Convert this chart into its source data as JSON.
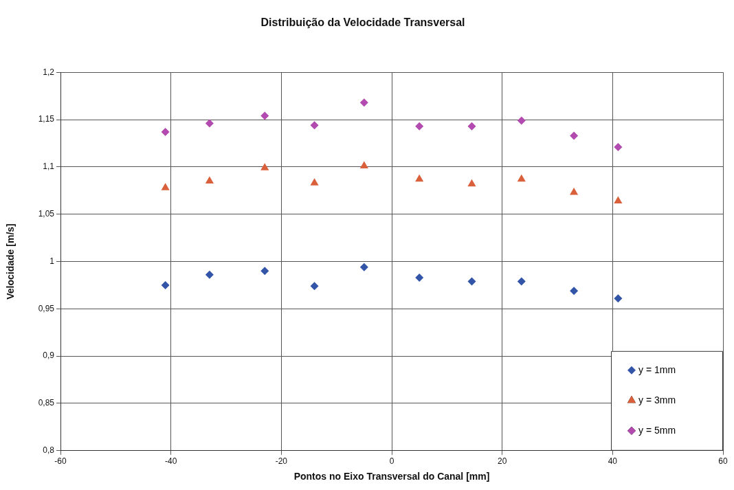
{
  "chart_data": {
    "type": "scatter",
    "title": "Distribuição da Velocidade Transversal",
    "xlabel": "Pontos no Eixo Transversal do Canal [mm]",
    "ylabel": "Velocidade [m/s]",
    "x": [
      -41,
      -33,
      -23,
      -14,
      -5,
      5,
      14.5,
      23.5,
      33,
      41
    ],
    "series": [
      {
        "name": "y = 1mm",
        "color": "#3355a8",
        "marker": "diamond",
        "values": [
          0.975,
          0.986,
          0.99,
          0.974,
          0.994,
          0.983,
          0.979,
          0.979,
          0.969,
          0.961
        ]
      },
      {
        "name": "y = 3mm",
        "color": "#d9603b",
        "marker": "triangle",
        "values": [
          1.078,
          1.085,
          1.099,
          1.083,
          1.101,
          1.087,
          1.082,
          1.087,
          1.073,
          1.064
        ]
      },
      {
        "name": "y = 5mm",
        "color": "#b24aaf",
        "marker": "diamond",
        "values": [
          1.137,
          1.146,
          1.154,
          1.144,
          1.168,
          1.143,
          1.143,
          1.149,
          1.133,
          1.121
        ]
      }
    ],
    "xlim": [
      -60,
      60
    ],
    "xticks": [
      -60,
      -40,
      -20,
      0,
      20,
      40,
      60
    ],
    "ylim": [
      0.8,
      1.2
    ],
    "yticks": [
      {
        "value": 0.8,
        "label": "0,8"
      },
      {
        "value": 0.85,
        "label": "0,85"
      },
      {
        "value": 0.9,
        "label": "0,9"
      },
      {
        "value": 0.95,
        "label": "0,95"
      },
      {
        "value": 1,
        "label": "1"
      },
      {
        "value": 1.05,
        "label": "1,05"
      },
      {
        "value": 1.1,
        "label": "1,1"
      },
      {
        "value": 1.15,
        "label": "1,15"
      },
      {
        "value": 1.2,
        "label": "1,2"
      }
    ],
    "grid": true,
    "legend": "bottom right"
  }
}
